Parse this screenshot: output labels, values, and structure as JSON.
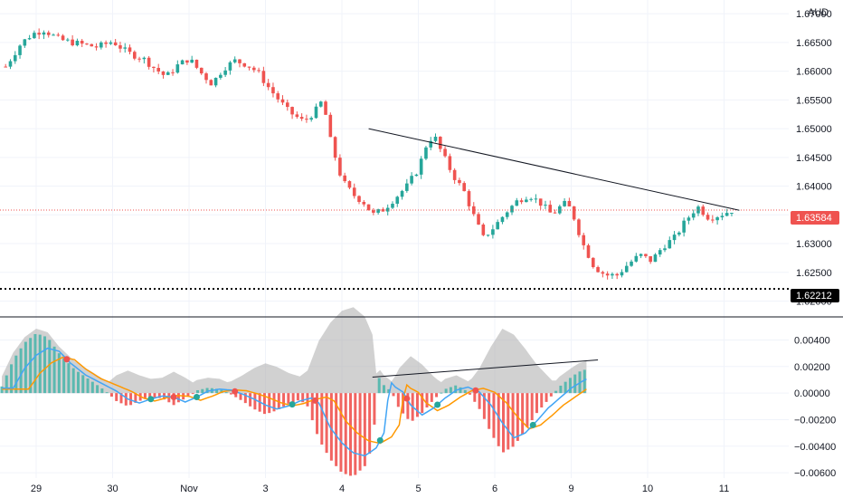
{
  "currency": "AUD",
  "colors": {
    "up": "#26a69a",
    "down": "#ef5350",
    "up_hist": "#4db6ac",
    "down_hist": "#ef5350",
    "trendline": "#131722",
    "macd_line": "#42a5f5",
    "signal_line": "#ff9800",
    "shadow": "#b2b2b2",
    "last_price": "#ef5350",
    "level_tag": "#000000",
    "grid": "#f0f3fa"
  },
  "chart_data": [
    {
      "type": "candlestick",
      "name": "price",
      "currency": "AUD",
      "x_ticks": [
        "29",
        "30",
        "Nov",
        "3",
        "4",
        "5",
        "6",
        "9",
        "10",
        "11"
      ],
      "y_ticks": [
        "1.67000",
        "1.66500",
        "1.66000",
        "1.65500",
        "1.65000",
        "1.64500",
        "1.64000",
        "1.63500",
        "1.63000",
        "1.62500",
        "1.62000"
      ],
      "ylim": [
        1.6185,
        1.6705
      ],
      "last_price": "1.63584",
      "level_marker": "1.62212",
      "trendline": [
        [
          4.35,
          1.65
        ],
        [
          9.2,
          1.6358
        ]
      ],
      "close_anchors": [
        [
          -0.4,
          1.6608
        ],
        [
          -0.2,
          1.6648
        ],
        [
          -0.05,
          1.6665
        ],
        [
          0.1,
          1.6672
        ],
        [
          0.3,
          1.6655
        ],
        [
          0.55,
          1.6648
        ],
        [
          0.8,
          1.6642
        ],
        [
          1.0,
          1.6652
        ],
        [
          1.2,
          1.6632
        ],
        [
          1.4,
          1.6622
        ],
        [
          1.55,
          1.6605
        ],
        [
          1.7,
          1.659
        ],
        [
          1.85,
          1.661
        ],
        [
          2.0,
          1.6622
        ],
        [
          2.15,
          1.6598
        ],
        [
          2.3,
          1.6578
        ],
        [
          2.45,
          1.6605
        ],
        [
          2.6,
          1.6618
        ],
        [
          2.75,
          1.6612
        ],
        [
          2.9,
          1.6598
        ],
        [
          3.05,
          1.657
        ],
        [
          3.3,
          1.653
        ],
        [
          3.5,
          1.6512
        ],
        [
          3.65,
          1.653
        ],
        [
          3.75,
          1.655
        ],
        [
          3.85,
          1.648
        ],
        [
          4.0,
          1.641
        ],
        [
          4.15,
          1.6385
        ],
        [
          4.3,
          1.637
        ],
        [
          4.4,
          1.635
        ],
        [
          4.55,
          1.636
        ],
        [
          4.7,
          1.638
        ],
        [
          4.85,
          1.64
        ],
        [
          5.0,
          1.643
        ],
        [
          5.1,
          1.647
        ],
        [
          5.2,
          1.649
        ],
        [
          5.3,
          1.646
        ],
        [
          5.45,
          1.642
        ],
        [
          5.6,
          1.639
        ],
        [
          5.75,
          1.634
        ],
        [
          5.85,
          1.631
        ],
        [
          6.0,
          1.633
        ],
        [
          6.15,
          1.6355
        ],
        [
          6.3,
          1.6375
        ],
        [
          6.45,
          1.6385
        ],
        [
          6.6,
          1.637
        ],
        [
          6.75,
          1.635
        ],
        [
          6.9,
          1.637
        ],
        [
          7.0,
          1.636
        ],
        [
          7.15,
          1.63
        ],
        [
          7.3,
          1.626
        ],
        [
          7.45,
          1.6245
        ],
        [
          7.6,
          1.6245
        ],
        [
          7.75,
          1.6265
        ],
        [
          7.9,
          1.628
        ],
        [
          8.05,
          1.627
        ],
        [
          8.2,
          1.6295
        ],
        [
          8.35,
          1.631
        ],
        [
          8.5,
          1.634
        ],
        [
          8.65,
          1.6365
        ],
        [
          8.8,
          1.6345
        ],
        [
          8.95,
          1.635
        ],
        [
          9.1,
          1.6358
        ]
      ]
    },
    {
      "type": "bar",
      "name": "histogram",
      "x_ticks": [
        "29",
        "30",
        "Nov",
        "3",
        "4",
        "5",
        "6",
        "9",
        "10",
        "11"
      ],
      "y_ticks": [
        "0.00400",
        "0.00200",
        "0.00000",
        "−0.00200",
        "−0.00400",
        "−0.00600"
      ],
      "ylim": [
        -0.0064,
        0.0056
      ],
      "histogram_anchors": [
        [
          -0.45,
          0.0005
        ],
        [
          -0.3,
          0.0025
        ],
        [
          -0.15,
          0.0038
        ],
        [
          0.0,
          0.0045
        ],
        [
          0.15,
          0.0042
        ],
        [
          0.3,
          0.003
        ],
        [
          0.5,
          0.0018
        ],
        [
          0.7,
          0.001
        ],
        [
          0.9,
          0.0002
        ],
        [
          1.05,
          -0.0006
        ],
        [
          1.2,
          -0.001
        ],
        [
          1.35,
          -0.0006
        ],
        [
          1.5,
          -0.0003
        ],
        [
          1.65,
          -0.0004
        ],
        [
          1.8,
          -0.0009
        ],
        [
          1.95,
          -0.0004
        ],
        [
          2.1,
          0.0002
        ],
        [
          2.25,
          0.0004
        ],
        [
          2.4,
          0.0003
        ],
        [
          2.55,
          -0.0001
        ],
        [
          2.7,
          -0.0006
        ],
        [
          2.85,
          -0.0012
        ],
        [
          3.0,
          -0.0016
        ],
        [
          3.15,
          -0.0013
        ],
        [
          3.3,
          -0.0008
        ],
        [
          3.45,
          -0.0005
        ],
        [
          3.55,
          -0.001
        ],
        [
          3.7,
          -0.0035
        ],
        [
          3.85,
          -0.005
        ],
        [
          4.0,
          -0.006
        ],
        [
          4.15,
          -0.0063
        ],
        [
          4.3,
          -0.0055
        ],
        [
          4.4,
          -0.004
        ],
        [
          4.48,
          0.0012
        ],
        [
          4.55,
          0.0006
        ],
        [
          4.65,
          0.0001
        ],
        [
          4.75,
          -0.0012
        ],
        [
          4.9,
          -0.0022
        ],
        [
          5.05,
          -0.0015
        ],
        [
          5.2,
          -0.0005
        ],
        [
          5.35,
          0.0003
        ],
        [
          5.5,
          0.0006
        ],
        [
          5.65,
          0.0001
        ],
        [
          5.8,
          -0.0012
        ],
        [
          5.95,
          -0.003
        ],
        [
          6.1,
          -0.0045
        ],
        [
          6.25,
          -0.004
        ],
        [
          6.4,
          -0.0028
        ],
        [
          6.55,
          -0.0015
        ],
        [
          6.7,
          -0.0005
        ],
        [
          6.85,
          0.0005
        ],
        [
          7.0,
          0.0012
        ],
        [
          7.1,
          0.0016
        ],
        [
          7.2,
          0.0018
        ]
      ]
    }
  ]
}
